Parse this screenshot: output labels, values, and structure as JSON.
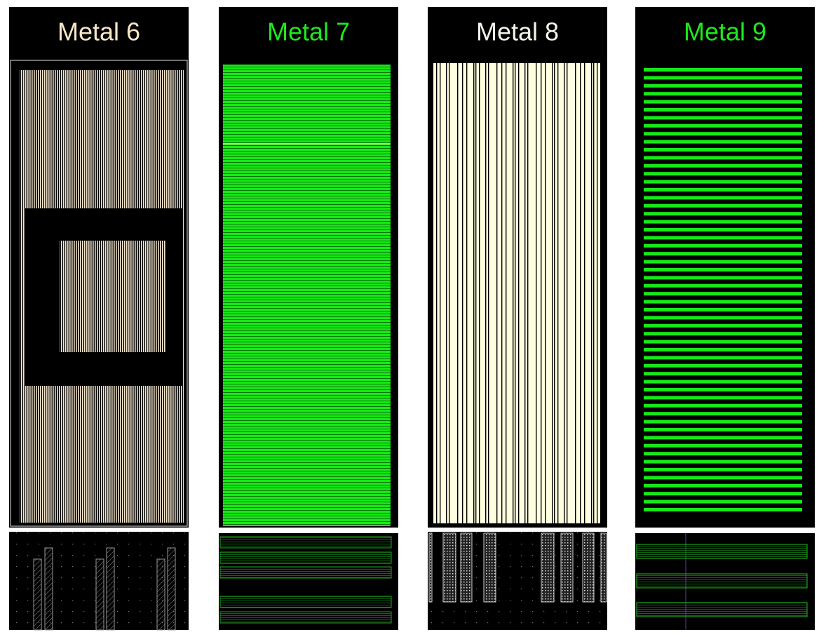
{
  "panels": [
    {
      "title": "Metal 6"
    },
    {
      "title": "Metal 7"
    },
    {
      "title": "Metal 8"
    },
    {
      "title": "Metal 9"
    }
  ]
}
